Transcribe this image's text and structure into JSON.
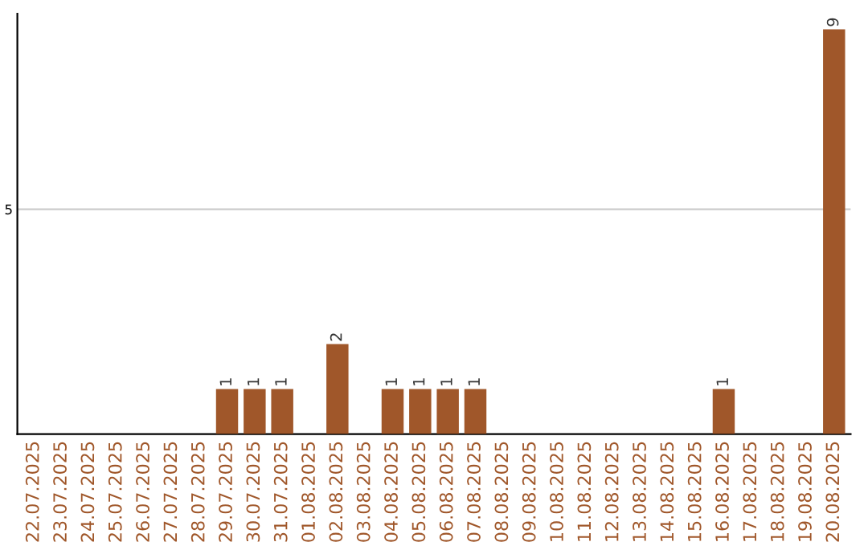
{
  "chart_data": {
    "type": "bar",
    "categories": [
      "22.07.2025",
      "23.07.2025",
      "24.07.2025",
      "25.07.2025",
      "26.07.2025",
      "27.07.2025",
      "28.07.2025",
      "29.07.2025",
      "30.07.2025",
      "31.07.2025",
      "01.08.2025",
      "02.08.2025",
      "03.08.2025",
      "04.08.2025",
      "05.08.2025",
      "06.08.2025",
      "07.08.2025",
      "08.08.2025",
      "09.08.2025",
      "10.08.2025",
      "11.08.2025",
      "12.08.2025",
      "13.08.2025",
      "14.08.2025",
      "15.08.2025",
      "16.08.2025",
      "17.08.2025",
      "18.08.2025",
      "19.08.2025",
      "20.08.2025"
    ],
    "values": [
      0,
      0,
      0,
      0,
      0,
      0,
      0,
      1,
      1,
      1,
      0,
      2,
      0,
      1,
      1,
      1,
      1,
      0,
      0,
      0,
      0,
      0,
      0,
      0,
      0,
      1,
      0,
      0,
      0,
      9
    ],
    "value_labels": [
      null,
      null,
      null,
      null,
      null,
      null,
      null,
      "1",
      "1",
      "1",
      null,
      "2",
      null,
      "1",
      "1",
      "1",
      "1",
      null,
      null,
      null,
      null,
      null,
      null,
      null,
      null,
      "1",
      null,
      null,
      null,
      "9"
    ],
    "color": "#a0572a",
    "ylim": [
      0,
      9.35
    ],
    "yticks": [
      5
    ],
    "grid": "y"
  }
}
